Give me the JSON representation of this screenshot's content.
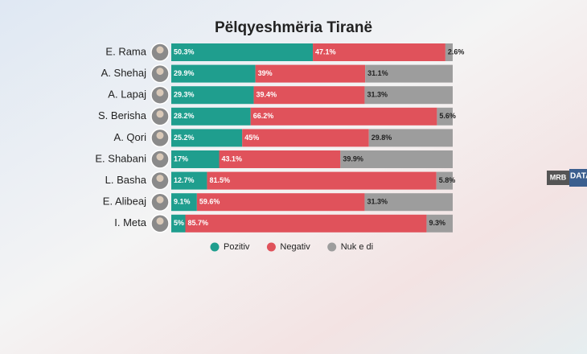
{
  "chart_data": {
    "type": "bar",
    "orientation": "horizontal",
    "stacked": true,
    "title": "Pëlqyeshmëria Tiranë",
    "categories": [
      "E. Rama",
      "A. Shehaj",
      "A. Lapaj",
      "S. Berisha",
      "A. Qori",
      "E. Shabani",
      "L. Basha",
      "E. Alibeaj",
      "I. Meta"
    ],
    "series": [
      {
        "name": "Pozitiv",
        "color": "#1f9e8e",
        "values": [
          50.3,
          29.9,
          29.3,
          28.2,
          25.2,
          17,
          12.7,
          9.1,
          5
        ],
        "value_labels": [
          "50.3%",
          "29.9%",
          "29.3%",
          "28.2%",
          "25.2%",
          "17%",
          "12.7%",
          "9.1%",
          "5%"
        ]
      },
      {
        "name": "Negativ",
        "color": "#e0525b",
        "values": [
          47.1,
          39,
          39.4,
          66.2,
          45,
          43.1,
          81.5,
          59.6,
          85.7
        ],
        "value_labels": [
          "47.1%",
          "39%",
          "39.4%",
          "66.2%",
          "45%",
          "43.1%",
          "81.5%",
          "59.6%",
          "85.7%"
        ]
      },
      {
        "name": "Nuk e di",
        "color": "#9d9d9d",
        "values": [
          2.6,
          31.1,
          31.3,
          5.6,
          29.8,
          39.9,
          5.8,
          31.3,
          9.3
        ],
        "value_labels": [
          "2.6%",
          "31.1%",
          "31.3%",
          "5.6%",
          "29.8%",
          "39.9%",
          "5.8%",
          "31.3%",
          "9.3%"
        ]
      }
    ],
    "xlim": [
      0,
      100
    ]
  },
  "logo": {
    "brand": "MRB",
    "product": "DATA"
  }
}
